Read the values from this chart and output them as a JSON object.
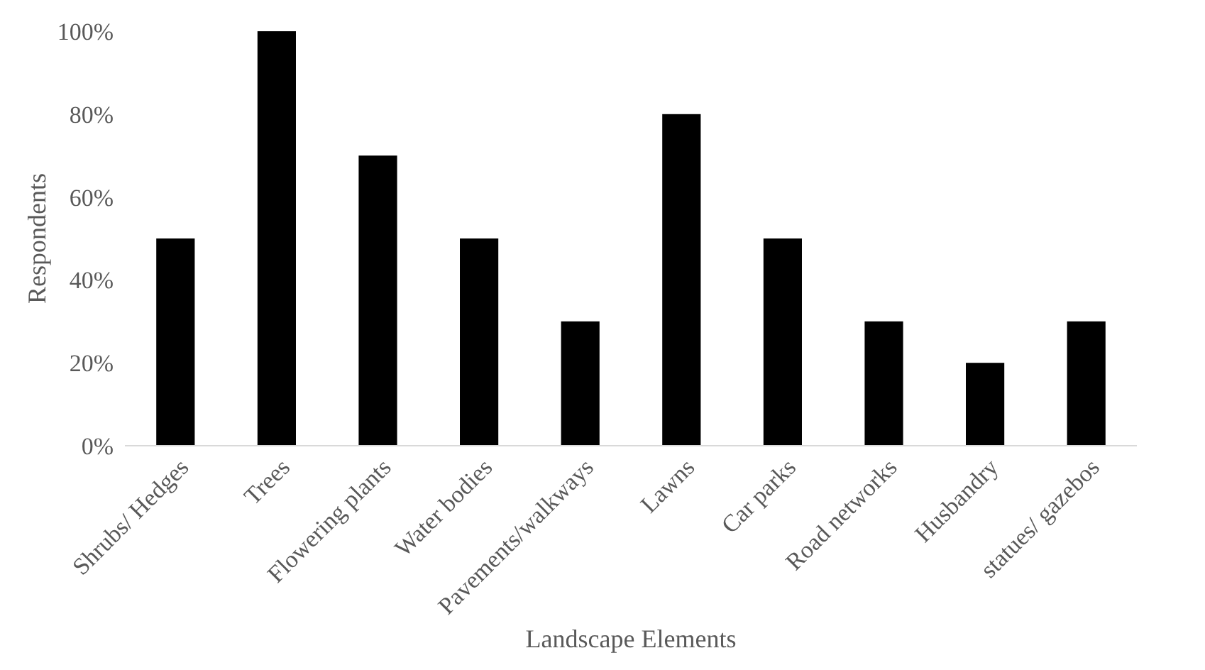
{
  "chart_data": {
    "type": "bar",
    "xlabel": "Landscape Elements",
    "ylabel": "Respondents",
    "categories": [
      "Shrubs/ Hedges",
      "Trees",
      "Flowering plants",
      "Water bodies",
      "Pavements/walkways",
      "Lawns",
      "Car parks",
      "Road networks",
      "Husbandry",
      "statues/ gazebos"
    ],
    "values": [
      50,
      100,
      70,
      50,
      30,
      80,
      50,
      30,
      20,
      30
    ],
    "color": "#000000",
    "ylim": [
      0,
      100
    ],
    "yticks": [
      {
        "value": 0,
        "label": "0%"
      },
      {
        "value": 20,
        "label": "20%"
      },
      {
        "value": 40,
        "label": "40%"
      },
      {
        "value": 60,
        "label": "60%"
      },
      {
        "value": 80,
        "label": "80%"
      },
      {
        "value": 100,
        "label": "100%"
      }
    ],
    "grid": false
  }
}
